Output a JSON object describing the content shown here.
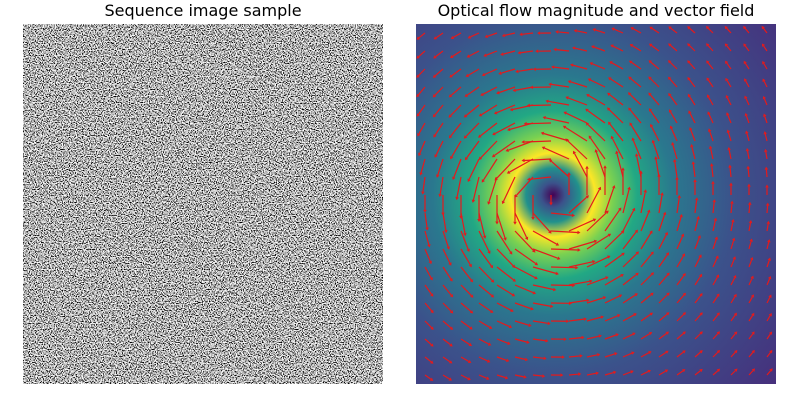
{
  "panels": [
    {
      "title": "Sequence image sample"
    },
    {
      "title": "Optical flow magnitude and vector field"
    }
  ]
}
